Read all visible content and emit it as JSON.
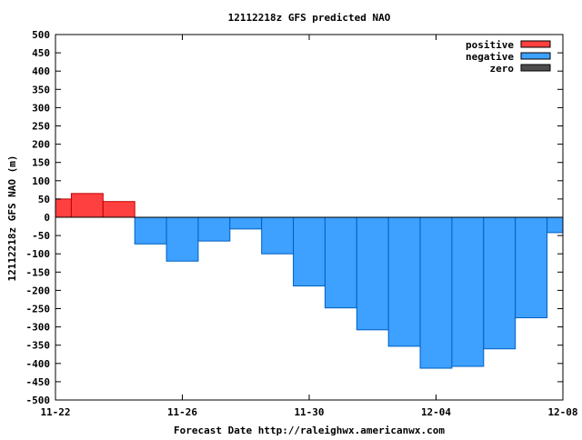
{
  "chart_data": {
    "type": "bar",
    "title": "12112218z GFS predicted NAO",
    "xlabel": "Forecast Date http://raleighwx.americanwx.com",
    "ylabel": "12112218z GFS NAO (m)",
    "xlim": [
      "11-22",
      "12-08"
    ],
    "ylim": [
      -500,
      500
    ],
    "x_ticks": [
      "11-22",
      "11-26",
      "11-30",
      "12-04",
      "12-08"
    ],
    "x_tick_days": [
      0,
      4,
      8,
      12,
      16
    ],
    "y_ticks": [
      500,
      450,
      400,
      350,
      300,
      250,
      200,
      150,
      100,
      50,
      0,
      -50,
      -100,
      -150,
      -200,
      -250,
      -300,
      -350,
      -400,
      -450,
      -500
    ],
    "bars": [
      {
        "start": 0,
        "end": 0.5,
        "value": 50
      },
      {
        "start": 0.5,
        "end": 1.5,
        "value": 65
      },
      {
        "start": 1.5,
        "end": 2.5,
        "value": 43
      },
      {
        "start": 2.5,
        "end": 3.5,
        "value": -73
      },
      {
        "start": 3.5,
        "end": 4.5,
        "value": -120
      },
      {
        "start": 4.5,
        "end": 5.5,
        "value": -65
      },
      {
        "start": 5.5,
        "end": 6.5,
        "value": -32
      },
      {
        "start": 6.5,
        "end": 7.5,
        "value": -100
      },
      {
        "start": 7.5,
        "end": 8.5,
        "value": -188
      },
      {
        "start": 8.5,
        "end": 9.5,
        "value": -248
      },
      {
        "start": 9.5,
        "end": 10.5,
        "value": -308
      },
      {
        "start": 10.5,
        "end": 11.5,
        "value": -353
      },
      {
        "start": 11.5,
        "end": 12.5,
        "value": -413
      },
      {
        "start": 12.5,
        "end": 13.5,
        "value": -408
      },
      {
        "start": 13.5,
        "end": 14.5,
        "value": -360
      },
      {
        "start": 14.5,
        "end": 15.5,
        "value": -275
      },
      {
        "start": 15.5,
        "end": 16,
        "value": -42
      }
    ],
    "legend": {
      "placement": "top-right",
      "entries": [
        {
          "label": "positive",
          "color": "#ff4040"
        },
        {
          "label": "negative",
          "color": "#3ea0ff"
        },
        {
          "label": "zero",
          "color": "#4d4d4d"
        }
      ]
    },
    "colors": {
      "positive_fill": "#ff4040",
      "positive_edge": "#c00000",
      "negative_fill": "#3ea0ff",
      "negative_edge": "#0060c0",
      "zero_line": "#000000"
    },
    "grid": false
  }
}
